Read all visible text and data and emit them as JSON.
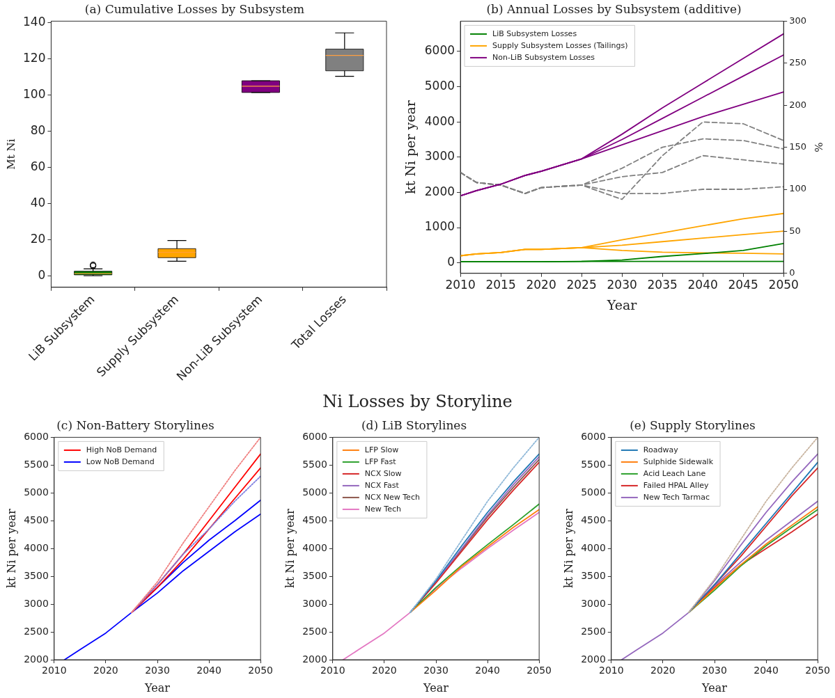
{
  "chart_data": [
    {
      "type": "box",
      "title": "(a) Cumulative Losses by Subsystem",
      "ylabel": "Mt Ni",
      "categories": [
        "LiB Subsystem",
        "Supply Subsystem",
        "Non-LiB Subsystem",
        "Total Losses"
      ],
      "colors": [
        "#008000",
        "#ffa500",
        "#800080",
        "#808080"
      ],
      "ylim": [
        -6.4,
        141
      ],
      "yticks": [
        0,
        20,
        40,
        60,
        80,
        100,
        120,
        140
      ],
      "grid": false,
      "boxes": [
        {
          "low": 0,
          "q1": 0.5,
          "median": 1.2,
          "q3": 2.5,
          "high": 3.8,
          "outliers": [
            5.5,
            6
          ]
        },
        {
          "low": 8,
          "q1": 10,
          "median": 13,
          "q3": 15,
          "high": 19.5
        },
        {
          "low": 101.5,
          "q1": 101.5,
          "median": 105,
          "q3": 108,
          "high": 108
        },
        {
          "low": 110.5,
          "q1": 113.5,
          "median": 122,
          "q3": 125.5,
          "high": 134.5
        }
      ]
    },
    {
      "type": "line",
      "title": "(b) Annual Losses by Subsystem (additive)",
      "xlabel": "Year",
      "ylabel": "kt Ni per year",
      "y2label": "%",
      "xlim": [
        2010,
        2050
      ],
      "xticks": [
        2010,
        2015,
        2020,
        2025,
        2030,
        2035,
        2040,
        2045,
        2050
      ],
      "ylim": [
        -300,
        6860
      ],
      "yticks": [
        0,
        1000,
        2000,
        3000,
        4000,
        5000,
        6000
      ],
      "y2lim": [
        0,
        300
      ],
      "y2ticks": [
        0,
        50,
        100,
        150,
        200,
        250,
        300
      ],
      "grid": false,
      "legend": "top left",
      "marker": "none",
      "x": [
        2010,
        2012,
        2015,
        2018,
        2020,
        2025,
        2030,
        2035,
        2040,
        2045,
        2050
      ],
      "series": [
        {
          "name": "LiB Subsystem Losses",
          "color": "#008000",
          "values": [
            30,
            30,
            30,
            30,
            30,
            40,
            80,
            180,
            260,
            350,
            550
          ]
        },
        {
          "name": "Supply Subsystem Losses (Tailings)",
          "color": "#ffa500",
          "values": [
            200,
            250,
            290,
            380,
            380,
            430,
            650,
            850,
            1050,
            1250,
            1400
          ]
        },
        {
          "name": "Non-LiB Subsystem Losses",
          "color": "#800080",
          "values": [
            1900,
            2050,
            2230,
            2480,
            2600,
            2950,
            3650,
            4400,
            5100,
            5800,
            6500
          ]
        },
        {
          "color": "#008000",
          "values": [
            30,
            30,
            30,
            30,
            30,
            40,
            40,
            40,
            40,
            40,
            40
          ]
        },
        {
          "color": "#ffa500",
          "values": [
            200,
            250,
            290,
            380,
            380,
            430,
            500,
            600,
            700,
            800,
            900
          ]
        },
        {
          "color": "#ffa500",
          "values": [
            200,
            250,
            290,
            380,
            380,
            430,
            350,
            300,
            280,
            270,
            250
          ]
        },
        {
          "color": "#800080",
          "values": [
            1900,
            2050,
            2230,
            2480,
            2600,
            2950,
            3500,
            4100,
            4700,
            5300,
            5900
          ]
        },
        {
          "color": "#800080",
          "values": [
            1900,
            2050,
            2230,
            2480,
            2600,
            2950,
            3350,
            3750,
            4150,
            4500,
            4850
          ]
        },
        {
          "color": "#808080",
          "axis": "y2",
          "line_style": "dashed",
          "values": [
            120,
            108,
            105,
            95,
            102,
            105,
            88,
            140,
            180,
            178,
            158
          ]
        },
        {
          "color": "#808080",
          "axis": "y2",
          "line_style": "dashed",
          "values": [
            120,
            108,
            105,
            95,
            102,
            105,
            125,
            150,
            160,
            158,
            148
          ]
        },
        {
          "color": "#808080",
          "axis": "y2",
          "line_style": "dashed",
          "values": [
            120,
            108,
            105,
            95,
            102,
            105,
            115,
            120,
            140,
            135,
            130
          ]
        },
        {
          "color": "#808080",
          "axis": "y2",
          "line_style": "dashed",
          "values": [
            120,
            108,
            105,
            95,
            102,
            105,
            95,
            95,
            100,
            100,
            103
          ]
        }
      ]
    },
    {
      "type": "line",
      "title": "(c) Non-Battery Storylines",
      "xlabel": "Year",
      "ylabel": "kt Ni per year",
      "xlim": [
        2010,
        2050
      ],
      "xticks": [
        2010,
        2020,
        2030,
        2040,
        2050
      ],
      "ylim": [
        2000,
        6000
      ],
      "yticks": [
        2000,
        2500,
        3000,
        3500,
        4000,
        4500,
        5000,
        5500,
        6000
      ],
      "grid": false,
      "legend": "top left",
      "marker": "none",
      "x": [
        2012,
        2015,
        2020,
        2025,
        2030,
        2035,
        2040,
        2045,
        2050
      ],
      "series": [
        {
          "color": "#f08080",
          "line_style": "dotted",
          "values": [
            null,
            null,
            null,
            2850,
            3400,
            4100,
            4750,
            5400,
            6000
          ]
        },
        {
          "color": "#8080e0",
          "line_style": "dotted",
          "values": [
            null,
            null,
            null,
            2850,
            3350,
            3900,
            4350,
            4850,
            5300
          ]
        },
        {
          "name": "High NoB Demand",
          "color": "#ff0000",
          "values": [
            null,
            null,
            null,
            2850,
            3350,
            3900,
            4500,
            5100,
            5700
          ]
        },
        {
          "color": "#ff0000",
          "values": [
            null,
            null,
            null,
            2850,
            3300,
            3800,
            4350,
            4900,
            5450
          ]
        },
        {
          "color": "#0000ff",
          "values": [
            null,
            null,
            null,
            2850,
            3200,
            3600,
            3950,
            4300,
            4620
          ]
        },
        {
          "name": "Low NoB Demand",
          "color": "#0000ff",
          "values": [
            2000,
            2180,
            2480,
            2850,
            3300,
            3750,
            4150,
            4500,
            4870
          ]
        }
      ]
    },
    {
      "type": "line",
      "title": "(d) LiB Storylines",
      "annotations": [
        "Ni Losses by Storyline"
      ],
      "xlabel": "Year",
      "ylabel": "kt Ni per year",
      "xlim": [
        2010,
        2050
      ],
      "xticks": [
        2010,
        2020,
        2030,
        2040,
        2050
      ],
      "ylim": [
        2000,
        6000
      ],
      "yticks": [
        2000,
        2500,
        3000,
        3500,
        4000,
        4500,
        5000,
        5500,
        6000
      ],
      "grid": false,
      "legend": "top left",
      "marker": "none",
      "x": [
        2012,
        2015,
        2020,
        2025,
        2030,
        2035,
        2040,
        2045,
        2050
      ],
      "series": [
        {
          "color": "#8fb8d8",
          "line_style": "dotted",
          "values": [
            null,
            null,
            null,
            2850,
            3450,
            4150,
            4850,
            5450,
            6000
          ]
        },
        {
          "color": "#1f77b4",
          "values": [
            null,
            null,
            null,
            2850,
            3420,
            4050,
            4650,
            5200,
            5700
          ]
        },
        {
          "name": "LFP Slow",
          "color": "#ff7f0e",
          "values": [
            null,
            null,
            null,
            2850,
            3250,
            3680,
            4030,
            4380,
            4700
          ]
        },
        {
          "name": "LFP Fast",
          "color": "#2ca02c",
          "values": [
            null,
            null,
            null,
            2850,
            3300,
            3700,
            4070,
            4430,
            4800
          ]
        },
        {
          "name": "NCX Slow",
          "color": "#d62728",
          "values": [
            null,
            null,
            null,
            2850,
            3380,
            3950,
            4520,
            5050,
            5550
          ]
        },
        {
          "name": "NCX Fast",
          "color": "#9467bd",
          "values": [
            null,
            null,
            null,
            2850,
            3400,
            4000,
            4600,
            5150,
            5650
          ]
        },
        {
          "name": "NCX New Tech",
          "color": "#8c564b",
          "values": [
            null,
            null,
            null,
            2850,
            3390,
            3980,
            4570,
            5100,
            5600
          ]
        },
        {
          "name": "New Tech",
          "color": "#e377c2",
          "values": [
            2000,
            2180,
            2480,
            2850,
            3280,
            3650,
            4000,
            4330,
            4650
          ]
        }
      ]
    },
    {
      "type": "line",
      "title": "(e) Supply Storylines",
      "xlabel": "Year",
      "ylabel": "kt Ni per year",
      "xlim": [
        2010,
        2050
      ],
      "xticks": [
        2010,
        2020,
        2030,
        2040,
        2050
      ],
      "ylim": [
        2000,
        6000
      ],
      "yticks": [
        2000,
        2500,
        3000,
        3500,
        4000,
        4500,
        5000,
        5500,
        6000
      ],
      "grid": false,
      "legend": "top left",
      "marker": "none",
      "x": [
        2012,
        2015,
        2020,
        2025,
        2030,
        2035,
        2040,
        2045,
        2050
      ],
      "series": [
        {
          "color": "#c8b4a0",
          "line_style": "dotted",
          "values": [
            null,
            null,
            null,
            2850,
            3450,
            4150,
            4850,
            5450,
            6000
          ]
        },
        {
          "name": "Roadway",
          "color": "#1f77b4",
          "values": [
            null,
            null,
            null,
            2850,
            3350,
            3900,
            4450,
            5000,
            5550
          ]
        },
        {
          "name": "Sulphide Sidewalk",
          "color": "#ff7f0e",
          "values": [
            null,
            null,
            null,
            2850,
            3280,
            3700,
            4080,
            4420,
            4750
          ]
        },
        {
          "name": "Acid Leach Lane",
          "color": "#2ca02c",
          "values": [
            null,
            null,
            null,
            2850,
            3250,
            3680,
            4050,
            4380,
            4700
          ]
        },
        {
          "name": "Failed HPAL Alley",
          "color": "#d62728",
          "values": [
            null,
            null,
            null,
            2850,
            3300,
            3700,
            4000,
            4300,
            4620
          ]
        },
        {
          "color": "#d62728",
          "values": [
            null,
            null,
            null,
            2850,
            3350,
            3850,
            4400,
            4950,
            5450
          ]
        },
        {
          "name": "New Tech Tarmac",
          "color": "#9467bd",
          "values": [
            null,
            null,
            null,
            2850,
            3420,
            4050,
            4650,
            5200,
            5700
          ]
        },
        {
          "color": "#9467bd",
          "values": [
            2000,
            2180,
            2480,
            2850,
            3330,
            3750,
            4150,
            4500,
            4850
          ]
        }
      ]
    }
  ]
}
